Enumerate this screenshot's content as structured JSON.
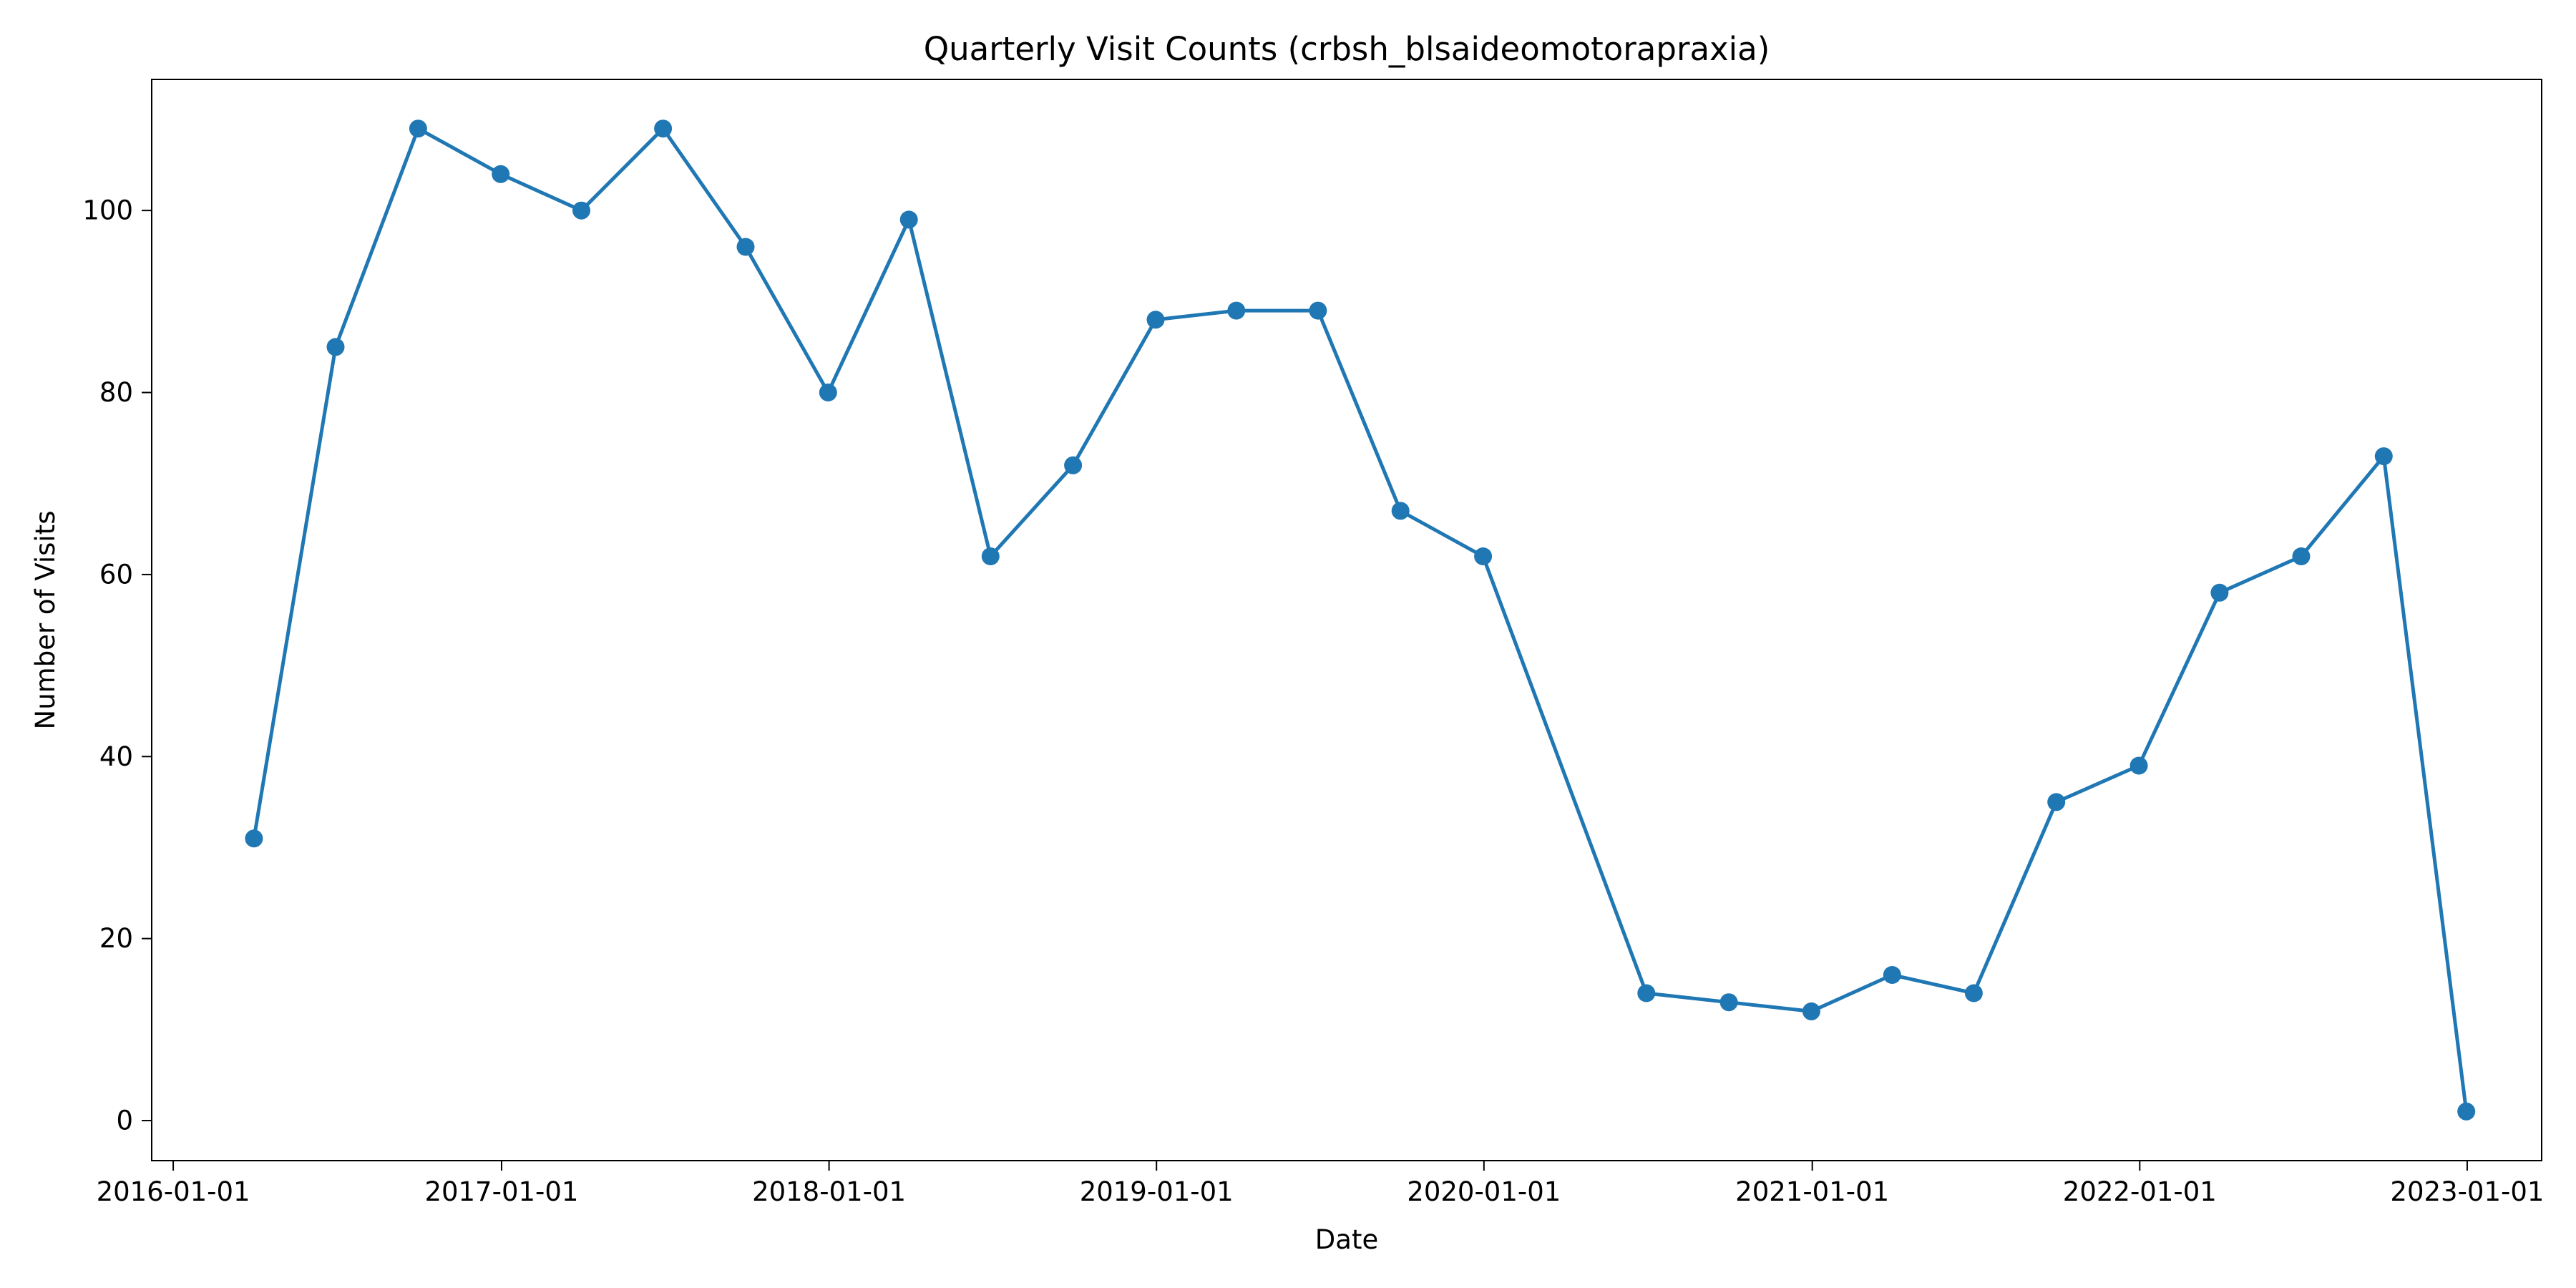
{
  "chart_data": {
    "type": "line",
    "title": "Quarterly Visit Counts (crbsh_blsaideomotorapraxia)",
    "xlabel": "Date",
    "ylabel": "Number of Visits",
    "x_tick_labels": [
      "2016-01-01",
      "2017-01-01",
      "2018-01-01",
      "2019-01-01",
      "2020-01-01",
      "2021-01-01",
      "2022-01-01",
      "2023-01-01"
    ],
    "y_tick_labels": [
      "0",
      "20",
      "40",
      "60",
      "80",
      "100"
    ],
    "xlim": [
      "2015-12-08",
      "2023-03-25"
    ],
    "ylim": [
      -4.4,
      114.4
    ],
    "grid": false,
    "legend": "none",
    "series": [
      {
        "color": "#1f77b4",
        "marker": "circle",
        "points": [
          {
            "x": "2016-03-31",
            "y": 31
          },
          {
            "x": "2016-06-30",
            "y": 85
          },
          {
            "x": "2016-09-30",
            "y": 109
          },
          {
            "x": "2016-12-31",
            "y": 104
          },
          {
            "x": "2017-03-31",
            "y": 100
          },
          {
            "x": "2017-06-30",
            "y": 109
          },
          {
            "x": "2017-09-30",
            "y": 96
          },
          {
            "x": "2017-12-31",
            "y": 80
          },
          {
            "x": "2018-03-31",
            "y": 99
          },
          {
            "x": "2018-06-30",
            "y": 62
          },
          {
            "x": "2018-09-30",
            "y": 72
          },
          {
            "x": "2018-12-31",
            "y": 88
          },
          {
            "x": "2019-03-31",
            "y": 89
          },
          {
            "x": "2019-06-30",
            "y": 89
          },
          {
            "x": "2019-09-30",
            "y": 67
          },
          {
            "x": "2019-12-31",
            "y": 62
          },
          {
            "x": "2020-06-30",
            "y": 14
          },
          {
            "x": "2020-09-30",
            "y": 13
          },
          {
            "x": "2020-12-31",
            "y": 12
          },
          {
            "x": "2021-03-31",
            "y": 16
          },
          {
            "x": "2021-06-30",
            "y": 14
          },
          {
            "x": "2021-09-30",
            "y": 35
          },
          {
            "x": "2021-12-31",
            "y": 39
          },
          {
            "x": "2022-03-31",
            "y": 58
          },
          {
            "x": "2022-06-30",
            "y": 62
          },
          {
            "x": "2022-09-30",
            "y": 73
          },
          {
            "x": "2022-12-31",
            "y": 1
          }
        ]
      }
    ]
  }
}
